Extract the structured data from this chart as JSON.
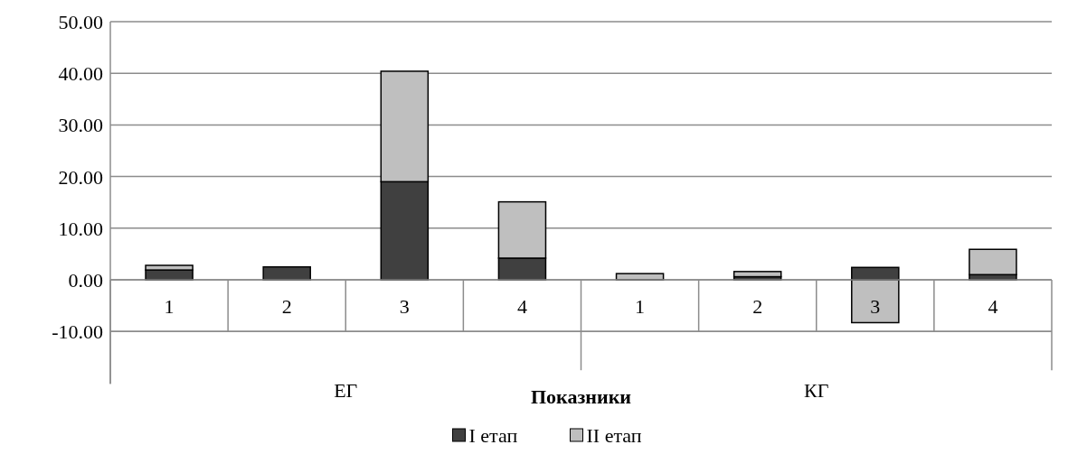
{
  "chart_data": {
    "type": "bar",
    "stacked": true,
    "xlabel": "Показники",
    "categories": [
      "1",
      "2",
      "3",
      "4",
      "1",
      "2",
      "3",
      "4"
    ],
    "annotations": [
      "ЕГ",
      "КГ"
    ],
    "series": [
      {
        "name": "I етап",
        "color": "#404040",
        "values": [
          1.9,
          2.5,
          19.0,
          4.2,
          0,
          0.6,
          2.4,
          1.0
        ]
      },
      {
        "name": "II етап",
        "color": "#bfbfbf",
        "values": [
          0.9,
          0,
          21.4,
          10.9,
          1.2,
          1.0,
          -8.3,
          4.9
        ]
      }
    ],
    "ylim": [
      -10,
      50
    ],
    "yticks": [
      {
        "value": -10,
        "label": "-10.00"
      },
      {
        "value": 0,
        "label": "0.00"
      },
      {
        "value": 10,
        "label": "10.00"
      },
      {
        "value": 20,
        "label": "20.00"
      },
      {
        "value": 30,
        "label": "30.00"
      },
      {
        "value": 40,
        "label": "40.00"
      },
      {
        "value": 50,
        "label": "50.00"
      }
    ],
    "grid": "y",
    "legend": "bottom"
  }
}
